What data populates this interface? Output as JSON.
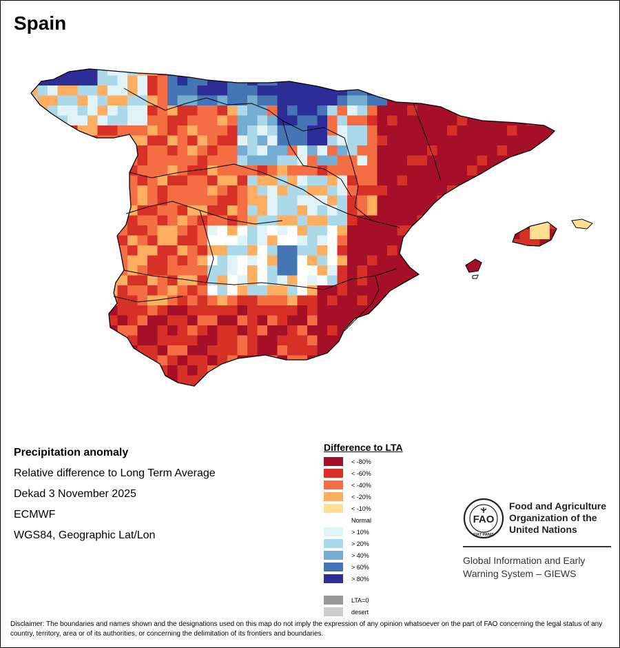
{
  "title": "Spain",
  "info": {
    "heading": "Precipitation anomaly",
    "lines": [
      "Relative difference to Long Term Average",
      "Dekad 3 November 2025",
      "ECMWF",
      "WGS84, Geographic Lat/Lon"
    ]
  },
  "legend": {
    "title": "Difference to LTA",
    "classes": [
      {
        "label": "< -80%",
        "color": "#A50F28"
      },
      {
        "label": "< -60%",
        "color": "#D73027"
      },
      {
        "label": "< -40%",
        "color": "#F46D43"
      },
      {
        "label": "< -20%",
        "color": "#FDAE61"
      },
      {
        "label": "< -10%",
        "color": "#FEE090"
      },
      {
        "label": "Normal",
        "color": "#FFFFFF"
      },
      {
        "label": "> 10%",
        "color": "#E0F3F8"
      },
      {
        "label": "> 20%",
        "color": "#ABD9E9"
      },
      {
        "label": "> 40%",
        "color": "#74ADD1"
      },
      {
        "label": "> 60%",
        "color": "#4575B4"
      },
      {
        "label": "> 80%",
        "color": "#2C2D96"
      }
    ],
    "extra": [
      {
        "label": "LTA=0",
        "color": "#999999"
      },
      {
        "label": "desert",
        "color": "#CCCCCC"
      }
    ]
  },
  "org": {
    "name_lines": [
      "Food and Agriculture",
      "Organization of the",
      "United Nations"
    ],
    "logo_text": "FAO",
    "logo_motto": "FIAT PANIS",
    "system_lines": [
      "Global Information and Early",
      "Warning System – GIEWS"
    ]
  },
  "disclaimer": "Disclaimer: The boundaries and names shown and the designations used on this map do not imply the expression of any opinion whatsoever on the part of FAO concerning the legal status of any country, territory, area or of its authorities, or concerning the delimitation of its frontiers and boundaries.",
  "map": {
    "colors": {
      "c80n": "#A50F28",
      "c60n": "#D73027",
      "c40n": "#F46D43",
      "c20n": "#FDAE61",
      "c10n": "#FEE090",
      "norm": "#FFFFFF",
      "p10": "#E0F3F8",
      "p20": "#ABD9E9",
      "p40": "#74ADD1",
      "p60": "#4575B4",
      "p80": "#2C2D96",
      "border": "#000000"
    }
  }
}
